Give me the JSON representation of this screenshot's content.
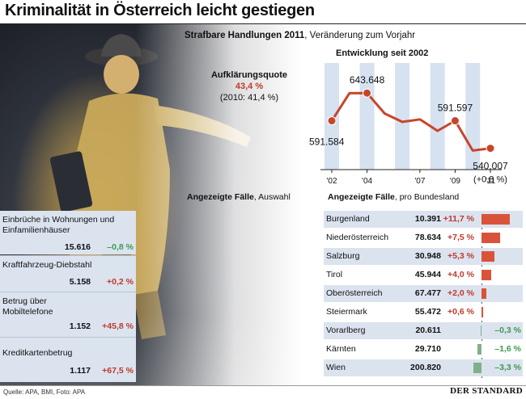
{
  "header": {
    "title": "Kriminalität in Österreich leicht gestiegen",
    "subtitle_bold": "Strafbare Handlungen 2011",
    "subtitle_rest": ", Veränderung zum Vorjahr"
  },
  "aufklaerung": {
    "label": "Aufklärungsquote",
    "value": "43,4 %",
    "previous": "(2010: 41,4 %)"
  },
  "colors": {
    "line": "#c8452a",
    "positive": "#c0392b",
    "negative": "#3e9a52",
    "pos_bar": "#d9533a",
    "neg_bar": "#7eb08a",
    "panel_bg": "#dbe3ef",
    "year_band": "#d6e2f0"
  },
  "chart_data": [
    {
      "type": "line",
      "title": "Entwicklung seit 2002",
      "x": [
        "2002",
        "2003",
        "2004",
        "2005",
        "2006",
        "2007",
        "2008",
        "2009",
        "2010",
        "2011"
      ],
      "values": [
        591584,
        643286,
        643648,
        605272,
        589495,
        594240,
        572695,
        591597,
        535745,
        540007
      ],
      "x_tick_labels": [
        "'02",
        "'04",
        "'07",
        "'09",
        "'11"
      ],
      "x_tick_positions": [
        "2002",
        "2004",
        "2007",
        "2009",
        "2011"
      ],
      "ylim": [
        0,
        700000
      ],
      "data_labels": [
        {
          "x": "2002",
          "text": "591.584"
        },
        {
          "x": "2004",
          "text": "643.648"
        },
        {
          "x": "2009",
          "text": "591.597"
        },
        {
          "x": "2011",
          "text": "540.007"
        }
      ],
      "final_change": "(+0,8 %)"
    },
    {
      "type": "bar",
      "title": "Angezeigte Fälle, pro Bundesland",
      "title_bold": "Angezeigte Fälle",
      "title_rest": ", pro Bundesland",
      "categories": [
        "Burgenland",
        "Niederösterreich",
        "Salzburg",
        "Tirol",
        "Oberösterreich",
        "Steiermark",
        "Vorarlberg",
        "Kärnten",
        "Wien"
      ],
      "values": [
        11.7,
        7.5,
        5.3,
        4.0,
        2.0,
        0.6,
        -0.3,
        -1.6,
        -3.3
      ],
      "value_labels": [
        "+11,7 %",
        "+7,5 %",
        "+5,3 %",
        "+4,0 %",
        "+2,0 %",
        "+0,6 %",
        "–0,3 %",
        "–1,6 %",
        "–3,3 %"
      ],
      "cases": [
        "10.391",
        "78.634",
        "30.948",
        "45.944",
        "67.477",
        "55.472",
        "20.611",
        "29.710",
        "200.820"
      ]
    }
  ],
  "auswahl": {
    "title_bold": "Angezeigte Fälle",
    "title_rest": ", Auswahl",
    "items": [
      {
        "name": "Einbrüche in Wohnungen und Einfamilienhäuser",
        "value": "15.616",
        "change": "–0,8 %",
        "negative": true
      },
      {
        "name": "Kraftfahrzeug-Diebstahl",
        "value": "5.158",
        "change": "+0,2 %",
        "negative": false
      },
      {
        "name": "Betrug über Mobiltelefone",
        "value": "1.152",
        "change": "+45,8 %",
        "negative": false
      },
      {
        "name": "Kreditkartenbetrug",
        "value": "1.117",
        "change": "+67,5 %",
        "negative": false
      }
    ]
  },
  "footer": {
    "source": "Quelle: APA, BMI, Foto: APA",
    "logo": "DER STANDARD"
  }
}
